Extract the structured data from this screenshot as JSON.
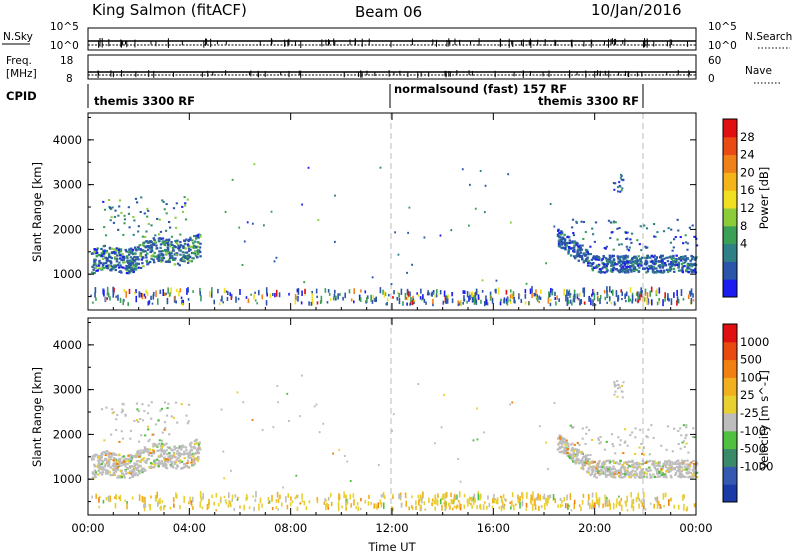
{
  "header": {
    "radar": "King Salmon (fitACF)",
    "beam": "Beam 06",
    "date": "10/Jan/2016"
  },
  "aux_panels": {
    "nsky": {
      "label": "N.Sky",
      "left_ticks": [
        "10^5",
        "10^0"
      ],
      "right_ticks": [
        "10^5",
        "10^0"
      ],
      "right_label": "N.Search"
    },
    "freq": {
      "label_line1": "Freq.",
      "label_line2": "[MHz]",
      "left_ticks": [
        "18",
        "8"
      ],
      "right_ticks": [
        "60",
        "0"
      ],
      "right_label": "Nave"
    },
    "cpid": {
      "label": "CPID",
      "segments": [
        "themis 3300 RF",
        "normalsound (fast) 157 RF",
        "themis 3300 RF"
      ]
    }
  },
  "chart_data": [
    {
      "type": "scatter",
      "title": "",
      "xlabel": "",
      "ylabel": "Slant Range [km]",
      "xlim_hours": [
        0,
        24
      ],
      "ylim": [
        200,
        4600
      ],
      "yticks": [
        "4000",
        "3000",
        "2000",
        "1000"
      ],
      "colorbar": {
        "label": "Power [dB]",
        "tick_labels": [
          "28",
          "24",
          "20",
          "16",
          "12",
          "8",
          "4"
        ],
        "colors": [
          "#1c1cf0",
          "#2a55a8",
          "#2f7f86",
          "#3aa055",
          "#8ccc3a",
          "#f0e020",
          "#f5b51a",
          "#f08018",
          "#ea4a14",
          "#e01010"
        ]
      },
      "dashed_lines_hours": [
        12,
        22
      ],
      "regions": [
        {
          "name": "morning-echo-band",
          "t_start": 0.1,
          "t_end": 4.4,
          "range_start_km": 1050,
          "range_end_km": 1750,
          "dominant": "green-blue"
        },
        {
          "name": "evening-echo-band",
          "t_start": 18.5,
          "t_end": 24,
          "range_start_km": 1000,
          "range_end_km": 1500,
          "dominant": "blue"
        },
        {
          "name": "ground-scatter-floor",
          "t_start": 0,
          "t_end": 24,
          "range_start_km": 250,
          "range_end_km": 600,
          "dominant": "mixed"
        }
      ]
    },
    {
      "type": "scatter",
      "title": "",
      "xlabel": "Time UT",
      "ylabel": "Slant Range [km]",
      "xlim_hours": [
        0,
        24
      ],
      "ylim": [
        200,
        4600
      ],
      "xticks": [
        "00:00",
        "04:00",
        "08:00",
        "12:00",
        "16:00",
        "20:00",
        "00:00"
      ],
      "yticks": [
        "4000",
        "3000",
        "2000",
        "1000"
      ],
      "colorbar": {
        "label": "Velocity [m s^-1]",
        "tick_labels": [
          "1000",
          "500",
          "100",
          "25",
          "-25",
          "-100",
          "-500",
          "-1000"
        ],
        "colors": [
          "#1a3aa8",
          "#3558b0",
          "#3a8a6a",
          "#50c040",
          "#bdbdbd",
          "#e8d030",
          "#f0b020",
          "#f08010",
          "#e84a10",
          "#e01010"
        ]
      },
      "dashed_lines_hours": [
        12,
        22
      ],
      "regions": [
        {
          "name": "morning-ground-scatter",
          "t_start": 0.1,
          "t_end": 4.4,
          "range_start_km": 1050,
          "range_end_km": 1750,
          "dominant": "grey"
        },
        {
          "name": "evening-ground-scatter",
          "t_start": 18.5,
          "t_end": 24,
          "range_start_km": 1000,
          "range_end_km": 1500,
          "dominant": "grey"
        },
        {
          "name": "low-range-ionospheric",
          "t_start": 0,
          "t_end": 24,
          "range_start_km": 250,
          "range_end_km": 600,
          "dominant": "yellow"
        }
      ]
    }
  ]
}
